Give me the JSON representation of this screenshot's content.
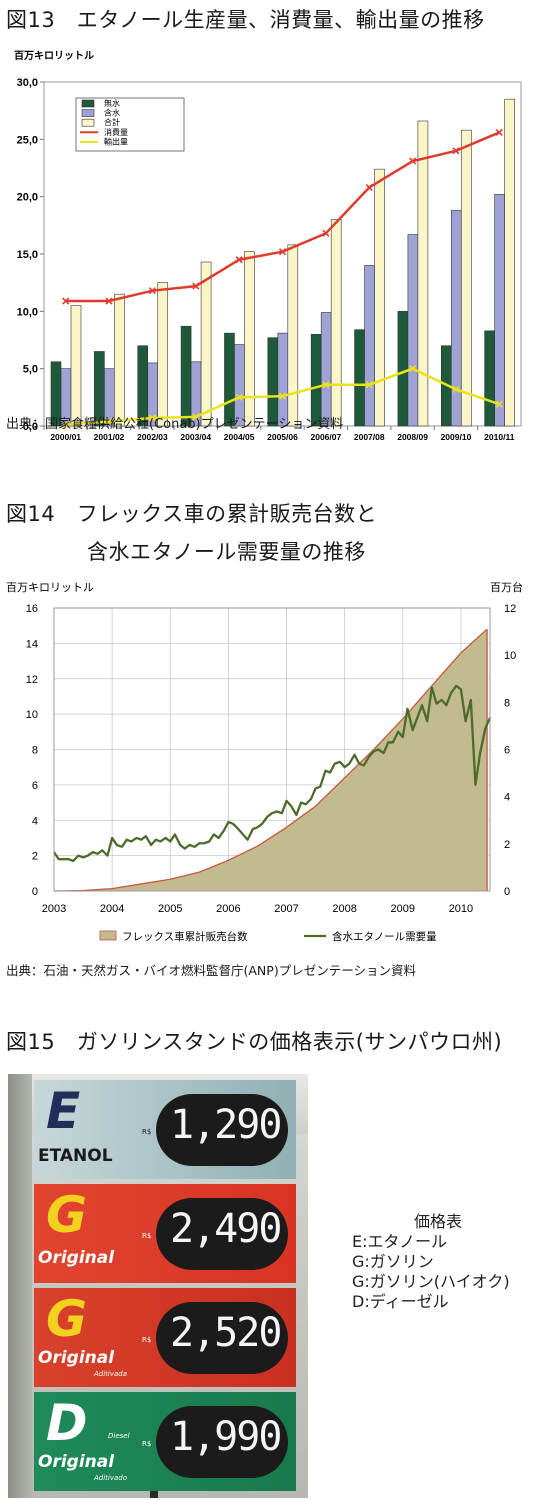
{
  "fig13": {
    "title": "図13　エタノール生産量、消費量、輸出量の推移",
    "unit": "百万キロリットル",
    "source": "出典：国家食糧供給公社(Conab)プレゼンテーション資料",
    "chart_data": {
      "type": "bar",
      "categories": [
        "2000/01",
        "2001/02",
        "2002/03",
        "2003/04",
        "2004/05",
        "2005/06",
        "2006/07",
        "2007/08",
        "2008/09",
        "2009/10",
        "2010/11"
      ],
      "ylim": [
        0,
        30
      ],
      "yticks": [
        "0,0",
        "5,0",
        "10,0",
        "15,0",
        "20,0",
        "25,0",
        "30,0"
      ],
      "ylabel": "百万キロリットル",
      "series": [
        {
          "name": "無水",
          "type": "bar",
          "color": "#1e5a3a",
          "values": [
            5.6,
            6.5,
            7.0,
            8.7,
            8.1,
            7.7,
            8.0,
            8.4,
            10.0,
            7.0,
            8.3
          ]
        },
        {
          "name": "含水",
          "type": "bar",
          "color": "#9fa2d4",
          "values": [
            5.0,
            5.0,
            5.5,
            5.6,
            7.1,
            8.1,
            9.9,
            14.0,
            16.7,
            18.8,
            20.2
          ]
        },
        {
          "name": "合計",
          "type": "bar",
          "color": "#fbf6c8",
          "values": [
            10.5,
            11.5,
            12.5,
            14.3,
            15.2,
            15.8,
            18.0,
            22.4,
            26.6,
            25.8,
            28.5
          ]
        },
        {
          "name": "消費量",
          "type": "line",
          "color": "#e03a2e",
          "values": [
            10.9,
            10.9,
            11.8,
            12.2,
            14.5,
            15.2,
            16.8,
            20.8,
            23.1,
            24.0,
            25.6
          ]
        },
        {
          "name": "輸出量",
          "type": "line",
          "color": "#e9e21c",
          "values": [
            0.1,
            0.4,
            0.7,
            0.8,
            2.5,
            2.6,
            3.6,
            3.6,
            5.0,
            3.2,
            1.9
          ]
        }
      ],
      "legend": "top-left",
      "grid": false
    }
  },
  "fig14": {
    "title_line1": "図14　フレックス車の累計販売台数と",
    "title_line2": "含水エタノール需要量の推移",
    "left_unit": "百万キロリットル",
    "right_unit": "百万台",
    "source": "出典：石油・天然ガス・バイオ燃料監督庁(ANP)プレゼンテーション資料",
    "chart_data": {
      "type": "area",
      "x_ticks": [
        "2003",
        "2004",
        "2005",
        "2006",
        "2007",
        "2008",
        "2009",
        "2010"
      ],
      "xlim": [
        2003,
        2010.5
      ],
      "ylim_left": [
        0,
        16
      ],
      "ylim_right": [
        0,
        12
      ],
      "yticks_left": [
        "0",
        "2",
        "4",
        "6",
        "8",
        "10",
        "12",
        "14",
        "16"
      ],
      "yticks_right": [
        "0",
        "2",
        "4",
        "6",
        "8",
        "10",
        "12"
      ],
      "grid": true,
      "legend": "bottom",
      "series": [
        {
          "name": "フレックス車累計販売台数",
          "axis": "right",
          "type": "area",
          "color": "#c1bb8f",
          "x": [
            2003.0,
            2003.5,
            2004.0,
            2004.5,
            2005.0,
            2005.5,
            2006.0,
            2006.5,
            2007.0,
            2007.5,
            2008.0,
            2008.5,
            2009.0,
            2009.5,
            2010.0,
            2010.45
          ],
          "values": [
            0.0,
            0.02,
            0.1,
            0.3,
            0.5,
            0.8,
            1.3,
            1.9,
            2.7,
            3.6,
            4.8,
            6.0,
            7.3,
            8.7,
            10.1,
            11.1
          ]
        },
        {
          "name": "含水エタノール需要量",
          "axis": "left",
          "type": "line",
          "color": "#4e6b2b",
          "x": [
            2003.0,
            2003.08,
            2003.17,
            2003.25,
            2003.33,
            2003.42,
            2003.5,
            2003.58,
            2003.67,
            2003.75,
            2003.83,
            2003.92,
            2004.0,
            2004.08,
            2004.17,
            2004.25,
            2004.33,
            2004.42,
            2004.5,
            2004.58,
            2004.67,
            2004.75,
            2004.83,
            2004.92,
            2005.0,
            2005.08,
            2005.17,
            2005.25,
            2005.33,
            2005.42,
            2005.5,
            2005.58,
            2005.67,
            2005.75,
            2005.83,
            2005.92,
            2006.0,
            2006.08,
            2006.17,
            2006.25,
            2006.33,
            2006.42,
            2006.5,
            2006.58,
            2006.67,
            2006.75,
            2006.83,
            2006.92,
            2007.0,
            2007.08,
            2007.17,
            2007.25,
            2007.33,
            2007.42,
            2007.5,
            2007.58,
            2007.67,
            2007.75,
            2007.83,
            2007.92,
            2008.0,
            2008.08,
            2008.17,
            2008.25,
            2008.33,
            2008.42,
            2008.5,
            2008.58,
            2008.67,
            2008.75,
            2008.83,
            2008.92,
            2009.0,
            2009.08,
            2009.17,
            2009.25,
            2009.33,
            2009.42,
            2009.5,
            2009.58,
            2009.67,
            2009.75,
            2009.83,
            2009.92,
            2010.0,
            2010.08,
            2010.17,
            2010.25,
            2010.33,
            2010.42,
            2010.5
          ],
          "values": [
            2.2,
            1.8,
            1.8,
            1.8,
            1.7,
            2.0,
            1.9,
            2.0,
            2.2,
            2.1,
            2.3,
            2.0,
            3.0,
            2.6,
            2.5,
            2.9,
            2.8,
            3.0,
            2.9,
            3.1,
            2.6,
            2.9,
            2.8,
            3.0,
            2.8,
            3.2,
            2.6,
            2.4,
            2.6,
            2.5,
            2.7,
            2.7,
            2.8,
            3.2,
            3.0,
            3.4,
            3.9,
            3.8,
            3.5,
            3.2,
            2.9,
            3.5,
            3.6,
            3.8,
            4.2,
            4.4,
            4.5,
            4.4,
            5.1,
            4.8,
            4.3,
            5.0,
            4.9,
            5.2,
            5.8,
            5.9,
            6.8,
            6.7,
            7.2,
            7.3,
            7.0,
            7.2,
            7.7,
            7.2,
            7.1,
            7.6,
            7.9,
            8.0,
            7.8,
            8.4,
            8.4,
            9.0,
            8.7,
            10.3,
            9.1,
            9.8,
            10.5,
            9.6,
            11.5,
            10.6,
            10.8,
            10.5,
            11.2,
            11.6,
            11.4,
            9.6,
            10.8,
            6.0,
            7.8,
            9.2,
            9.8
          ]
        }
      ]
    }
  },
  "fig15": {
    "title": "図15　ガソリンスタンドの価格表示(サンパウロ州)",
    "sign": [
      {
        "letter": "E",
        "name": "ETANOL",
        "price": "1,290",
        "rs": "R$"
      },
      {
        "letter": "G",
        "name": "Original",
        "price": "2,490",
        "rs": "R$"
      },
      {
        "letter": "G",
        "name": "Original",
        "sub": "Aditivada",
        "price": "2,520",
        "rs": "R$"
      },
      {
        "letter": "D",
        "name": "Original",
        "sub": "Aditivado",
        "top": "Diesel",
        "price": "1,990",
        "rs": "R$"
      }
    ],
    "legend_title": "価格表",
    "legend_items": [
      "E:エタノール",
      "G:ガソリン",
      "G:ガソリン(ハイオク)",
      "D:ディーゼル"
    ]
  }
}
